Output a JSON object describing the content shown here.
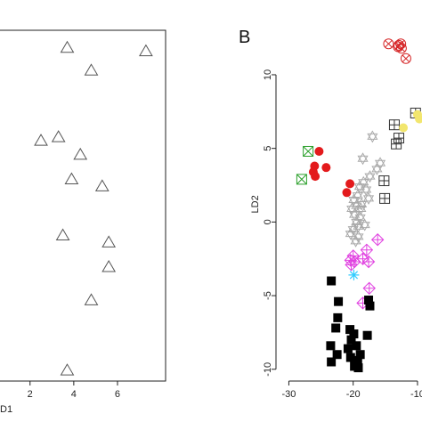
{
  "figure": {
    "panel_b_letter": "B"
  },
  "chart_data": [
    {
      "type": "scatter",
      "panel": "left (cropped)",
      "xlabel": "D1",
      "ylabel": "",
      "xlim": [
        0.3,
        8.2
      ],
      "ylim": [
        0,
        10
      ],
      "x_ticks": [
        2,
        4,
        6
      ],
      "x_tick_labels": [
        "2",
        "4",
        "6"
      ],
      "grid": false,
      "legend": "none",
      "series": [
        {
          "marker": "triangle-open",
          "color": "#555555",
          "points": [
            {
              "x": 3.7,
              "y": 9.5
            },
            {
              "x": 7.3,
              "y": 9.4
            },
            {
              "x": 4.8,
              "y": 8.85
            },
            {
              "x": 2.5,
              "y": 6.85
            },
            {
              "x": 3.3,
              "y": 6.95
            },
            {
              "x": 4.3,
              "y": 6.45
            },
            {
              "x": 3.9,
              "y": 5.75
            },
            {
              "x": 5.3,
              "y": 5.55
            },
            {
              "x": 3.5,
              "y": 4.15
            },
            {
              "x": 5.6,
              "y": 3.95
            },
            {
              "x": 5.6,
              "y": 3.25
            },
            {
              "x": 4.8,
              "y": 2.3
            },
            {
              "x": 3.7,
              "y": 0.3
            }
          ]
        }
      ]
    },
    {
      "type": "scatter",
      "panel": "B",
      "xlabel": "",
      "ylabel": "LD2",
      "xlim": [
        -32,
        -9.3
      ],
      "ylim": [
        -10.8,
        12.9
      ],
      "x_ticks": [
        -30,
        -20,
        -10
      ],
      "x_tick_labels": [
        "-30",
        "-20",
        "-10"
      ],
      "y_ticks": [
        -10,
        -5,
        0,
        5,
        10
      ],
      "y_tick_labels": [
        "-10",
        "-5",
        "0",
        "5",
        "10"
      ],
      "grid": false,
      "legend": "none",
      "series": [
        {
          "marker": "circle-x",
          "color": "#d62728",
          "points": [
            {
              "x": -14.5,
              "y": 12.1
            },
            {
              "x": -13.0,
              "y": 11.9
            },
            {
              "x": -12.6,
              "y": 12.1
            },
            {
              "x": -12.5,
              "y": 11.8
            },
            {
              "x": -12.9,
              "y": 12.0
            },
            {
              "x": -11.8,
              "y": 11.1
            }
          ]
        },
        {
          "marker": "square-x",
          "color": "#2ca02c",
          "points": [
            {
              "x": -27.0,
              "y": 4.8
            },
            {
              "x": -28.0,
              "y": 2.9
            }
          ]
        },
        {
          "marker": "circle-filled",
          "color": "#e31a1c",
          "points": [
            {
              "x": -25.3,
              "y": 4.8
            },
            {
              "x": -26.0,
              "y": 3.8
            },
            {
              "x": -24.2,
              "y": 3.7
            },
            {
              "x": -26.2,
              "y": 3.4
            },
            {
              "x": -25.9,
              "y": 3.1
            },
            {
              "x": -20.5,
              "y": 2.6
            },
            {
              "x": -21.0,
              "y": 2.0
            }
          ]
        },
        {
          "marker": "square-plus",
          "color": "#333333",
          "points": [
            {
              "x": -10.3,
              "y": 7.4
            },
            {
              "x": -13.6,
              "y": 6.6
            },
            {
              "x": -12.9,
              "y": 5.7
            },
            {
              "x": -13.3,
              "y": 5.3
            },
            {
              "x": -15.2,
              "y": 2.8
            },
            {
              "x": -15.1,
              "y": 1.6
            }
          ]
        },
        {
          "marker": "circle-filled",
          "color": "#f2e66e",
          "points": [
            {
              "x": -10.0,
              "y": 7.3
            },
            {
              "x": -12.2,
              "y": 6.4
            },
            {
              "x": -9.7,
              "y": 7.0
            }
          ]
        },
        {
          "marker": "star-open",
          "color": "#aaaaaa",
          "points": [
            {
              "x": -17.0,
              "y": 5.8
            },
            {
              "x": -15.8,
              "y": 4.0
            },
            {
              "x": -18.5,
              "y": 4.3
            },
            {
              "x": -16.3,
              "y": 3.6
            },
            {
              "x": -17.4,
              "y": 3.1
            },
            {
              "x": -18.4,
              "y": 2.7
            },
            {
              "x": -18.0,
              "y": 2.2
            },
            {
              "x": -19.0,
              "y": 2.4
            },
            {
              "x": -19.3,
              "y": 1.8
            },
            {
              "x": -17.6,
              "y": 1.6
            },
            {
              "x": -19.5,
              "y": 1.1
            },
            {
              "x": -18.8,
              "y": 0.9
            },
            {
              "x": -19.8,
              "y": 0.5
            },
            {
              "x": -18.9,
              "y": 0.3
            },
            {
              "x": -19.5,
              "y": 0.0
            },
            {
              "x": -19.2,
              "y": -0.3
            },
            {
              "x": -20.0,
              "y": -0.5
            },
            {
              "x": -19.2,
              "y": -1.0
            },
            {
              "x": -19.6,
              "y": -1.3
            },
            {
              "x": -20.2,
              "y": 0.9
            },
            {
              "x": -18.7,
              "y": 1.2
            },
            {
              "x": -19.9,
              "y": 1.5
            },
            {
              "x": -18.2,
              "y": -0.2
            },
            {
              "x": -20.4,
              "y": -0.8
            }
          ]
        },
        {
          "marker": "diamond-plus",
          "color": "#e040e0",
          "points": [
            {
              "x": -16.2,
              "y": -1.2
            },
            {
              "x": -17.9,
              "y": -1.9
            },
            {
              "x": -18.5,
              "y": -2.5
            },
            {
              "x": -20.0,
              "y": -2.3
            },
            {
              "x": -20.4,
              "y": -2.6
            },
            {
              "x": -19.8,
              "y": -2.7
            },
            {
              "x": -20.3,
              "y": -2.9
            },
            {
              "x": -17.6,
              "y": -2.7
            },
            {
              "x": -17.5,
              "y": -4.5
            },
            {
              "x": -18.5,
              "y": -5.5
            }
          ]
        },
        {
          "marker": "asterisk",
          "color": "#33ccff",
          "points": [
            {
              "x": -19.9,
              "y": -3.6
            }
          ]
        },
        {
          "marker": "square-filled",
          "color": "#000000",
          "points": [
            {
              "x": -23.4,
              "y": -4.0
            },
            {
              "x": -22.3,
              "y": -5.4
            },
            {
              "x": -17.6,
              "y": -5.3
            },
            {
              "x": -17.4,
              "y": -5.7
            },
            {
              "x": -22.4,
              "y": -6.5
            },
            {
              "x": -22.7,
              "y": -7.2
            },
            {
              "x": -20.5,
              "y": -7.3
            },
            {
              "x": -19.9,
              "y": -7.6
            },
            {
              "x": -20.3,
              "y": -8.0
            },
            {
              "x": -17.8,
              "y": -7.7
            },
            {
              "x": -19.5,
              "y": -8.4
            },
            {
              "x": -23.5,
              "y": -8.4
            },
            {
              "x": -20.8,
              "y": -8.6
            },
            {
              "x": -22.5,
              "y": -9.0
            },
            {
              "x": -20.4,
              "y": -9.2
            },
            {
              "x": -19.3,
              "y": -9.4
            },
            {
              "x": -23.4,
              "y": -9.5
            },
            {
              "x": -19.8,
              "y": -9.8
            },
            {
              "x": -19.2,
              "y": -9.9
            },
            {
              "x": -18.9,
              "y": -9.0
            }
          ]
        }
      ]
    }
  ]
}
